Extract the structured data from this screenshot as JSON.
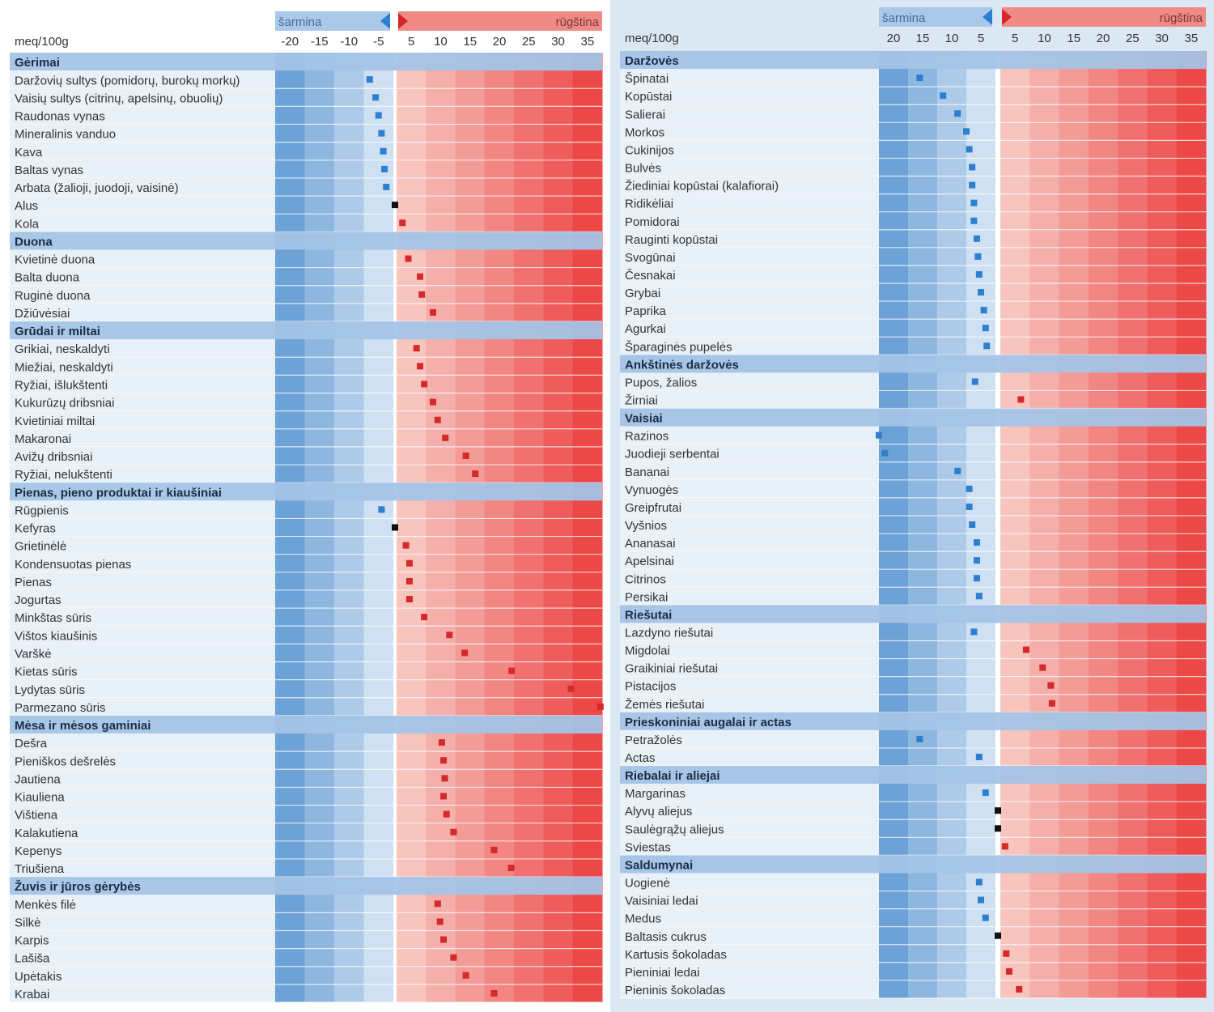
{
  "chart_data": [
    {
      "type": "scatter",
      "unit_label": "meq/100g",
      "alkaline_label": "šarmina",
      "acidic_label": "rūgština",
      "alkaline_ticks": [
        "-20",
        "-15",
        "-10",
        "-5"
      ],
      "acidic_ticks": [
        "5",
        "10",
        "15",
        "20",
        "25",
        "30",
        "35"
      ],
      "xlim": [
        -20,
        35
      ],
      "groups": [
        {
          "name": "Gėrimai",
          "items": [
            {
              "label": "Daržovių sultys (pomidorų, burokų morkų)",
              "value": -4
            },
            {
              "label": "Vaisių sultys (citrinų, apelsinų, obuolių)",
              "value": -3
            },
            {
              "label": "Raudonas vynas",
              "value": -2.5
            },
            {
              "label": "Mineralinis vanduo",
              "value": -2
            },
            {
              "label": "Kava",
              "value": -1.7
            },
            {
              "label": "Baltas vynas",
              "value": -1.5
            },
            {
              "label": "Arbata (žalioji, juodoji, vaisinė)",
              "value": -1.2
            },
            {
              "label": "Alus",
              "value": 0
            },
            {
              "label": "Kola",
              "value": 1
            }
          ]
        },
        {
          "name": "Duona",
          "items": [
            {
              "label": "Kvietinė duona",
              "value": 2
            },
            {
              "label": "Balta duona",
              "value": 4
            },
            {
              "label": "Ruginė duona",
              "value": 4.3
            },
            {
              "label": "Džiūvėsiai",
              "value": 6.2
            }
          ]
        },
        {
          "name": "Grūdai ir miltai",
          "items": [
            {
              "label": "Grikiai, neskaldyti",
              "value": 3.4
            },
            {
              "label": "Miežiai, neskaldyti",
              "value": 4
            },
            {
              "label": "Ryžiai, išlukštenti",
              "value": 4.7
            },
            {
              "label": "Kukurūzų dribsniai",
              "value": 6.2
            },
            {
              "label": "Kvietiniai miltai",
              "value": 7
            },
            {
              "label": "Makaronai",
              "value": 8.3
            },
            {
              "label": "Avižų dribsniai",
              "value": 11.8
            },
            {
              "label": "Ryžiai, nelukštenti",
              "value": 13.4
            }
          ]
        },
        {
          "name": "Pienas, pieno produktai ir kiaušiniai",
          "items": [
            {
              "label": "Rūgpienis",
              "value": -2
            },
            {
              "label": "Kefyras",
              "value": 0
            },
            {
              "label": "Grietinėlė",
              "value": 1.6
            },
            {
              "label": "Kondensuotas pienas",
              "value": 2.2
            },
            {
              "label": "Pienas",
              "value": 2.2
            },
            {
              "label": "Jogurtas",
              "value": 2.2
            },
            {
              "label": "Minkštas sūris",
              "value": 4.7
            },
            {
              "label": "Vištos kiaušinis",
              "value": 9
            },
            {
              "label": "Varškė",
              "value": 11.6
            },
            {
              "label": "Kietas sūris",
              "value": 19.6
            },
            {
              "label": "Lydytas sūris",
              "value": 29.7
            },
            {
              "label": "Parmezano sūris",
              "value": 34.7
            }
          ]
        },
        {
          "name": "Mėsa ir mėsos gaminiai",
          "items": [
            {
              "label": "Dešra",
              "value": 7.7
            },
            {
              "label": "Pieniškos dešrelės",
              "value": 8
            },
            {
              "label": "Jautiena",
              "value": 8.2
            },
            {
              "label": "Kiauliena",
              "value": 8
            },
            {
              "label": "Vištiena",
              "value": 8.5
            },
            {
              "label": "Kalakutiena",
              "value": 9.7
            },
            {
              "label": "Kepenys",
              "value": 16.6
            },
            {
              "label": "Triušiena",
              "value": 19.5
            }
          ]
        },
        {
          "name": "Žuvis ir jūros gėrybės",
          "items": [
            {
              "label": "Menkės filė",
              "value": 7
            },
            {
              "label": "Silkė",
              "value": 7.4
            },
            {
              "label": "Karpis",
              "value": 8
            },
            {
              "label": "Lašiša",
              "value": 9.7
            },
            {
              "label": "Upėtakis",
              "value": 11.8
            },
            {
              "label": "Krabai",
              "value": 16.6
            }
          ]
        }
      ]
    },
    {
      "type": "scatter",
      "unit_label": "meq/100g",
      "alkaline_label": "šarmina",
      "acidic_label": "rūgština",
      "alkaline_ticks": [
        "20",
        "15",
        "10",
        "5"
      ],
      "acidic_ticks": [
        "5",
        "10",
        "15",
        "20",
        "25",
        "30",
        "35"
      ],
      "xlim": [
        -20,
        35
      ],
      "groups": [
        {
          "name": "Daržovės",
          "items": [
            {
              "label": "Špinatai",
              "value": -13
            },
            {
              "label": "Kopūstai",
              "value": -9
            },
            {
              "label": "Salierai",
              "value": -6.5
            },
            {
              "label": "Morkos",
              "value": -5
            },
            {
              "label": "Cukinijos",
              "value": -4.5
            },
            {
              "label": "Bulvės",
              "value": -4
            },
            {
              "label": "Žiediniai kopūstai (kalafiorai)",
              "value": -4
            },
            {
              "label": "Ridikėliai",
              "value": -3.7
            },
            {
              "label": "Pomidorai",
              "value": -3.7
            },
            {
              "label": "Rauginti kopūstai",
              "value": -3.2
            },
            {
              "label": "Svogūnai",
              "value": -3
            },
            {
              "label": "Česnakai",
              "value": -2.8
            },
            {
              "label": "Grybai",
              "value": -2.5
            },
            {
              "label": "Paprika",
              "value": -2
            },
            {
              "label": "Agurkai",
              "value": -1.7
            },
            {
              "label": "Šparaginės pupelės",
              "value": -1.5
            }
          ]
        },
        {
          "name": "Ankštinės daržovės",
          "items": [
            {
              "label": "Pupos, žalios",
              "value": -3.5
            },
            {
              "label": "Žirniai",
              "value": 3.5
            }
          ]
        },
        {
          "name": "Vaisiai",
          "items": [
            {
              "label": "Razinos",
              "value": -20
            },
            {
              "label": "Juodieji serbentai",
              "value": -19
            },
            {
              "label": "Bananai",
              "value": -6.5
            },
            {
              "label": "Vynuogės",
              "value": -4.5
            },
            {
              "label": "Greipfrutai",
              "value": -4.5
            },
            {
              "label": "Vyšnios",
              "value": -4
            },
            {
              "label": "Ananasai",
              "value": -3.2
            },
            {
              "label": "Apelsinai",
              "value": -3.2
            },
            {
              "label": "Citrinos",
              "value": -3.2
            },
            {
              "label": "Persikai",
              "value": -2.8
            }
          ]
        },
        {
          "name": "Riešutai",
          "items": [
            {
              "label": "Lazdyno riešutai",
              "value": -3.7
            },
            {
              "label": "Migdolai",
              "value": 4.4
            },
            {
              "label": "Graikiniai riešutai",
              "value": 7.2
            },
            {
              "label": "Pistacijos",
              "value": 8.6
            },
            {
              "label": "Žemės riešutai",
              "value": 8.8
            }
          ]
        },
        {
          "name": "Prieskoniniai augalai ir actas",
          "items": [
            {
              "label": "Petražolės",
              "value": -13
            },
            {
              "label": "Actas",
              "value": -2.8
            }
          ]
        },
        {
          "name": "Riebalai ir aliejai",
          "items": [
            {
              "label": "Margarinas",
              "value": -1.7
            },
            {
              "label": "Alyvų aliejus",
              "value": 0
            },
            {
              "label": "Saulėgrąžų aliejus",
              "value": 0
            },
            {
              "label": "Sviestas",
              "value": 0.8
            }
          ]
        },
        {
          "name": "Saldumynai",
          "items": [
            {
              "label": "Uogienė",
              "value": -2.8
            },
            {
              "label": "Vaisiniai ledai",
              "value": -2.5
            },
            {
              "label": "Medus",
              "value": -1.7
            },
            {
              "label": "Baltasis cukrus",
              "value": 0
            },
            {
              "label": "Kartusis šokoladas",
              "value": 1
            },
            {
              "label": "Pieniniai ledai",
              "value": 1.5
            },
            {
              "label": "Pieninis šokoladas",
              "value": 3.2
            }
          ]
        }
      ]
    }
  ]
}
